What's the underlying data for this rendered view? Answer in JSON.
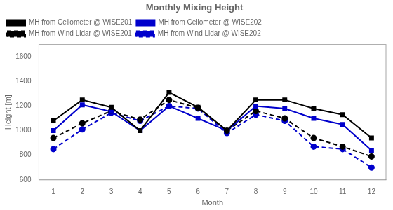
{
  "chart_data": {
    "type": "line",
    "title": "Monthly Mixing Height",
    "xlabel": "Month",
    "ylabel": "Height [m]",
    "x": [
      1,
      2,
      3,
      4,
      5,
      6,
      7,
      8,
      9,
      10,
      11,
      12
    ],
    "series": [
      {
        "name": "MH from Ceilometer @ WISE201",
        "color": "#000000",
        "marker": "square",
        "line_style": "solid",
        "values": [
          1080,
          1250,
          1190,
          1000,
          1310,
          1190,
          1000,
          1250,
          1250,
          1180,
          1130,
          940
        ]
      },
      {
        "name": "MH from Ceilometer @ WISE202",
        "color": "#0000cc",
        "marker": "square",
        "line_style": "solid",
        "values": [
          1000,
          1210,
          1155,
          1000,
          1200,
          1100,
          1000,
          1200,
          1180,
          1100,
          1050,
          840
        ]
      },
      {
        "name": "MH from Wind Lidar @ WISE201",
        "color": "#000000",
        "marker": "circle",
        "line_style": "dashed",
        "values": [
          940,
          1060,
          1160,
          1090,
          1250,
          1185,
          1000,
          1160,
          1100,
          940,
          870,
          790
        ]
      },
      {
        "name": "MH from Wind Lidar @ WISE202",
        "color": "#0000cc",
        "marker": "circle",
        "line_style": "dashed",
        "values": [
          850,
          1010,
          1145,
          1080,
          1200,
          1180,
          980,
          1130,
          1080,
          870,
          850,
          700
        ]
      }
    ],
    "xlim": [
      0.5,
      12.5
    ],
    "xticks": [
      1,
      2,
      3,
      4,
      5,
      6,
      7,
      8,
      9,
      10,
      11,
      12
    ],
    "ylim": [
      600,
      1700
    ],
    "yticks": [
      600,
      800,
      1000,
      1200,
      1400,
      1600
    ],
    "grid": false,
    "legend": "upper left"
  }
}
